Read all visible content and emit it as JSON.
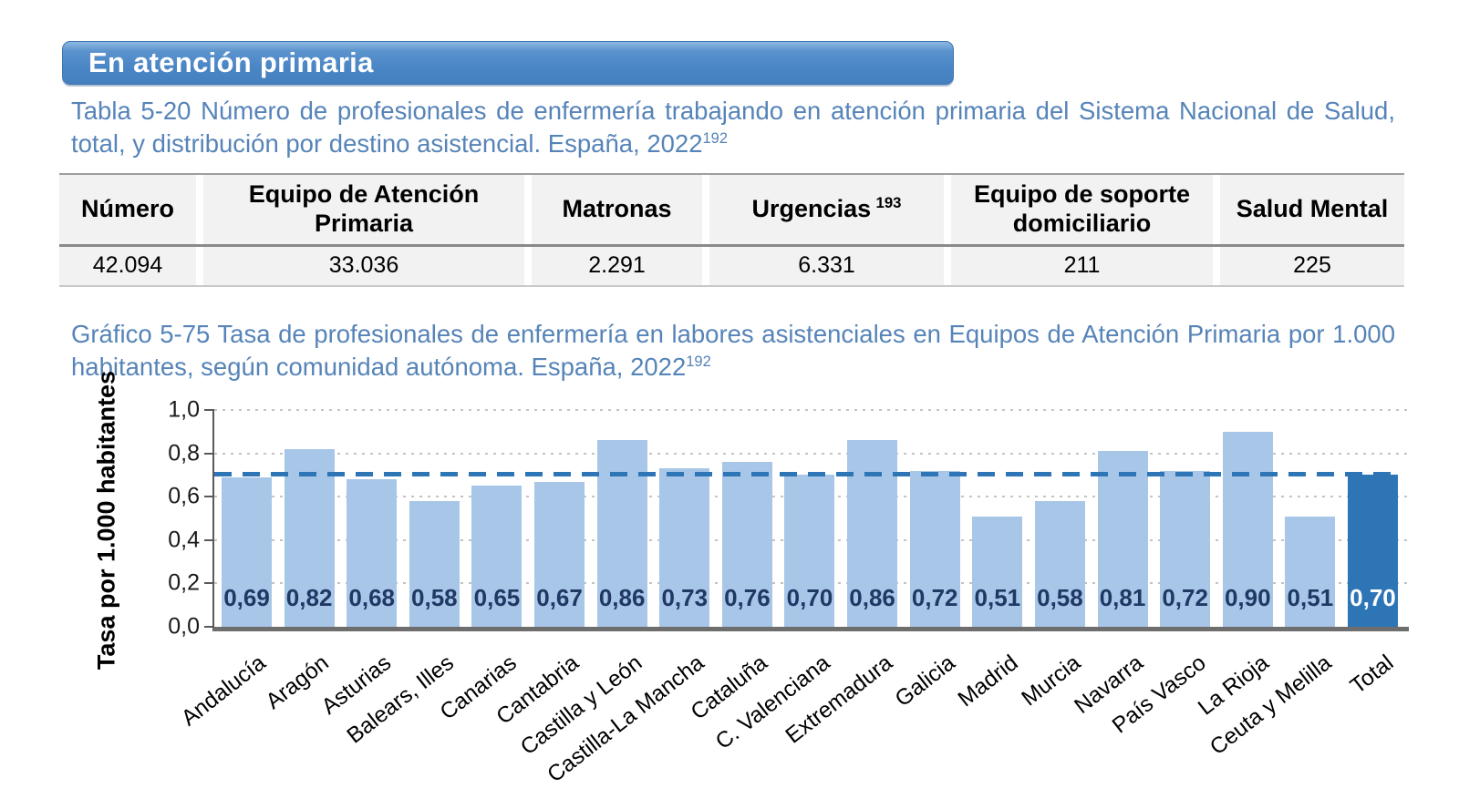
{
  "banner": {
    "label": "En atención primaria",
    "bg_color": "#4A86C5",
    "text_color": "#FFFFFF"
  },
  "titles_color": "#5684B8",
  "table_section": {
    "title": "Tabla 5-20 Número de profesionales de enfermería trabajando en atención primaria del Sistema Nacional de Salud, total, y distribución por destino asistencial. España, 2022",
    "title_sup": "192",
    "columns": [
      {
        "label": "Número",
        "sup": ""
      },
      {
        "label": "Equipo de Atención Primaria",
        "sup": ""
      },
      {
        "label": "Matronas",
        "sup": ""
      },
      {
        "label": "Urgencias",
        "sup": "193"
      },
      {
        "label": "Equipo de soporte domiciliario",
        "sup": ""
      },
      {
        "label": "Salud Mental",
        "sup": ""
      }
    ],
    "values": [
      "42.094",
      "33.036",
      "2.291",
      "6.331",
      "211",
      "225"
    ]
  },
  "chart_section": {
    "title": "Gráfico 5-75 Tasa de profesionales de enfermería en labores asistenciales en Equipos de Atención Primaria por 1.000 habitantes, según comunidad autónoma. España, 2022",
    "title_sup": "192"
  },
  "chart_data": {
    "type": "bar",
    "title": "Tasa de profesionales de enfermería en labores asistenciales en Equipos de Atención Primaria por 1.000 habitantes, según comunidad autónoma. España, 2022",
    "categories": [
      "Andalucía",
      "Aragón",
      "Asturias",
      "Balears, Illes",
      "Canarias",
      "Cantabria",
      "Castilla y León",
      "Castilla-La Mancha",
      "Cataluña",
      "C. Valenciana",
      "Extremadura",
      "Galicia",
      "Madrid",
      "Murcia",
      "Navarra",
      "País Vasco",
      "La Rioja",
      "Ceuta y Melilla",
      "Total"
    ],
    "values": [
      0.69,
      0.82,
      0.68,
      0.58,
      0.65,
      0.67,
      0.86,
      0.73,
      0.76,
      0.7,
      0.86,
      0.72,
      0.51,
      0.58,
      0.81,
      0.72,
      0.9,
      0.51,
      0.7
    ],
    "value_labels": [
      "0,69",
      "0,82",
      "0,68",
      "0,58",
      "0,65",
      "0,67",
      "0,86",
      "0,73",
      "0,76",
      "0,70",
      "0,86",
      "0,72",
      "0,51",
      "0,58",
      "0,81",
      "0,72",
      "0,90",
      "0,51",
      "0,70"
    ],
    "xlabel": "",
    "ylabel": "Tasa por 1.000 habitantes",
    "ylim": [
      0,
      1
    ],
    "yticks": [
      "0,0",
      "0,2",
      "0,4",
      "0,6",
      "0,8",
      "1,0"
    ],
    "grid": "horizontal-dotted",
    "legend": "none",
    "reference_line": 0.7,
    "highlight_category": "Total",
    "bar_color": "#A8C6E8",
    "highlight_bar_color": "#2E75B6",
    "reference_line_color": "#2E75B6",
    "value_label_color": "#1F3864",
    "highlight_value_label_color": "#FFFFFF"
  }
}
